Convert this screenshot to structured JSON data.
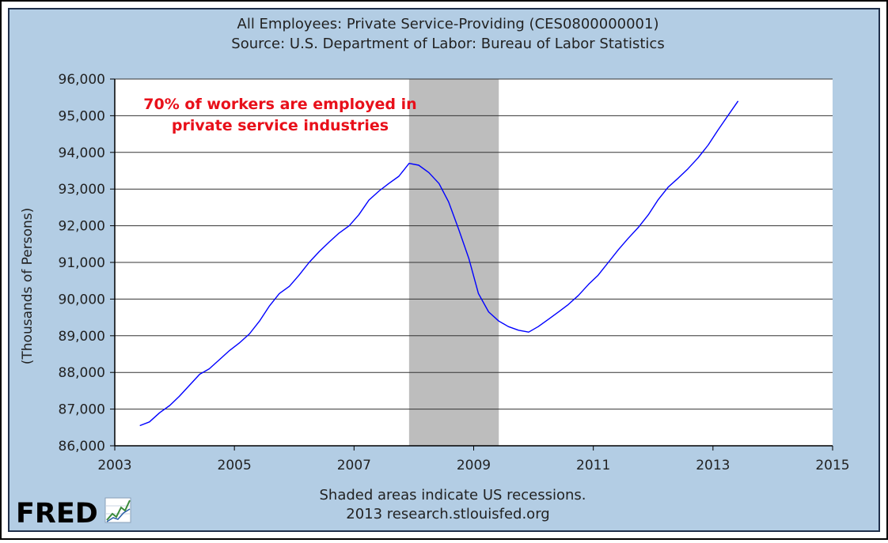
{
  "chart_data": {
    "type": "line",
    "title": "All Employees: Private Service-Providing (CES0800000001)",
    "subtitle": "Source: U.S. Department of Labor: Bureau of Labor Statistics",
    "xlabel": "",
    "ylabel": "(Thousands of Persons)",
    "xlim": [
      2003,
      2015
    ],
    "ylim": [
      86000,
      96000
    ],
    "x_ticks": [
      "2003",
      "2005",
      "2007",
      "2009",
      "2011",
      "2013",
      "2015"
    ],
    "y_ticks": [
      "86,000",
      "87,000",
      "88,000",
      "89,000",
      "90,000",
      "91,000",
      "92,000",
      "93,000",
      "94,000",
      "95,000",
      "96,000"
    ],
    "grid": "horizontal",
    "recessions": [
      {
        "start": 2007.92,
        "end": 2009.42
      }
    ],
    "series": [
      {
        "color": "#0000ff",
        "x": [
          2003.42,
          2003.58,
          2003.75,
          2003.92,
          2004.08,
          2004.25,
          2004.42,
          2004.58,
          2004.75,
          2004.92,
          2005.08,
          2005.25,
          2005.42,
          2005.58,
          2005.75,
          2005.92,
          2006.08,
          2006.25,
          2006.42,
          2006.58,
          2006.75,
          2006.92,
          2007.08,
          2007.25,
          2007.42,
          2007.58,
          2007.75,
          2007.92,
          2008.08,
          2008.25,
          2008.42,
          2008.58,
          2008.75,
          2008.92,
          2009.08,
          2009.25,
          2009.42,
          2009.58,
          2009.75,
          2009.92,
          2010.08,
          2010.25,
          2010.42,
          2010.58,
          2010.75,
          2010.92,
          2011.08,
          2011.25,
          2011.42,
          2011.58,
          2011.75,
          2011.92,
          2012.08,
          2012.25,
          2012.42,
          2012.58,
          2012.75,
          2012.92,
          2013.08,
          2013.25,
          2013.42
        ],
        "y": [
          86550,
          86650,
          86900,
          87100,
          87350,
          87650,
          87950,
          88100,
          88350,
          88600,
          88800,
          89050,
          89400,
          89800,
          90150,
          90350,
          90650,
          91000,
          91300,
          91550,
          91800,
          92000,
          92300,
          92700,
          92950,
          93150,
          93350,
          93700,
          93650,
          93450,
          93150,
          92650,
          91900,
          91100,
          90150,
          89650,
          89400,
          89250,
          89150,
          89100,
          89250,
          89450,
          89650,
          89850,
          90100,
          90400,
          90650,
          91000,
          91350,
          91650,
          91950,
          92300,
          92700,
          93050,
          93300,
          93550,
          93850,
          94200,
          94600,
          95000,
          95400
        ]
      }
    ],
    "annotation": [
      "70% of  workers are employed in",
      "private service industries"
    ],
    "note": "Shaded areas indicate US recessions.",
    "credit": "2013 research.stlouisfed.org",
    "logo_text": "FRED"
  }
}
